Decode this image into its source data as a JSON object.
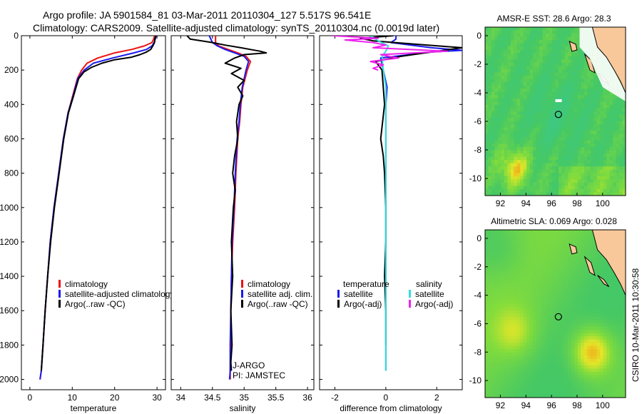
{
  "title_line1": "Argo profile: JA 5901584_81 03-Mar-2011 20110304_127 5.517S 96.541E",
  "title_line2": "Climatology: CARS2009. Satellite-adjusted climatology: synTS_20110304.nc (0.0019d later)",
  "side_label": "CSIRO 10-Mar-2011 10:30:58",
  "colors": {
    "red": "#ee1111",
    "blue": "#1a1aee",
    "black": "#000000",
    "cyan": "#33dddd",
    "magenta": "#ee22ee",
    "land": "#f8c89a"
  },
  "chart_data": [
    {
      "type": "line",
      "id": "temperature",
      "xlabel": "temperature",
      "xlim": [
        -2,
        32
      ],
      "ylim": [
        2060,
        0
      ],
      "xticks": [
        "0",
        "10",
        "20",
        "30"
      ],
      "xtick_values": [
        0,
        10,
        20,
        30
      ],
      "yticks": [
        "0",
        "200",
        "400",
        "600",
        "800",
        "1000",
        "1200",
        "1400",
        "1600",
        "1800",
        "2000"
      ],
      "ytick_values": [
        0,
        200,
        400,
        600,
        800,
        1000,
        1200,
        1400,
        1600,
        1800,
        2000
      ],
      "series": [
        {
          "name": "climatology",
          "color": "red",
          "x": [
            29.4,
            29.2,
            28.8,
            27,
            24,
            20,
            16,
            13.5,
            12.2,
            11.2,
            10.1,
            9,
            7.9,
            6.8,
            5.7,
            4.8,
            4.2,
            3.6,
            3.1,
            2.7,
            2.4
          ],
          "y": [
            0,
            20,
            40,
            60,
            80,
            100,
            130,
            160,
            200,
            250,
            350,
            450,
            600,
            800,
            1000,
            1200,
            1400,
            1600,
            1800,
            1950,
            2000
          ]
        },
        {
          "name": "satellite-adjusted climatology",
          "color": "blue",
          "x": [
            29.8,
            29.6,
            29.3,
            28.8,
            27.5,
            24.5,
            19.5,
            15,
            12.8,
            11.3,
            10.2,
            9,
            7.9,
            6.8,
            5.7,
            4.8,
            4.2,
            3.6,
            3.1,
            2.7,
            2.4
          ],
          "y": [
            0,
            20,
            40,
            60,
            80,
            100,
            130,
            160,
            200,
            250,
            350,
            450,
            600,
            800,
            1000,
            1200,
            1400,
            1600,
            1800,
            1950,
            2000
          ]
        },
        {
          "name": "Argo(..raw -QC)",
          "color": "black",
          "x": [
            29.7,
            29.5,
            29.4,
            29,
            28.5,
            27.5,
            26,
            24,
            20,
            17,
            14.5,
            12.8,
            11.5,
            10.3,
            9.1,
            8,
            6.9,
            5.8,
            4.9,
            4.2,
            3.6,
            3.1,
            2.7
          ],
          "y": [
            0,
            20,
            40,
            60,
            80,
            95,
            110,
            125,
            140,
            160,
            185,
            210,
            250,
            350,
            450,
            600,
            800,
            1000,
            1200,
            1400,
            1600,
            1800,
            1950
          ]
        }
      ],
      "legend": [
        "climatology",
        "satellite-adjusted climatology",
        "Argo(..raw -QC)"
      ],
      "legend_colors": [
        "red",
        "blue",
        "black"
      ]
    },
    {
      "type": "line",
      "id": "salinity",
      "xlabel": "salinity",
      "xlim": [
        33.85,
        36.1
      ],
      "ylim": [
        2060,
        0
      ],
      "xticks": [
        "34",
        "34.5",
        "35",
        "35.5",
        "36"
      ],
      "xtick_values": [
        34,
        34.5,
        35,
        35.5,
        36
      ],
      "series": [
        {
          "name": "climatology",
          "color": "red",
          "x": [
            34.55,
            34.55,
            34.6,
            34.75,
            34.9,
            35.03,
            35.1,
            35.05,
            34.98,
            34.95,
            34.93,
            34.9,
            34.87,
            34.85,
            34.82,
            34.8,
            34.79,
            34.79,
            34.78,
            34.78
          ],
          "y": [
            0,
            40,
            60,
            80,
            100,
            120,
            150,
            200,
            300,
            400,
            500,
            600,
            800,
            1000,
            1200,
            1400,
            1600,
            1800,
            1950,
            2000
          ]
        },
        {
          "name": "satellite adj. clim.",
          "color": "blue",
          "x": [
            34.45,
            34.5,
            34.58,
            34.7,
            34.85,
            35.0,
            35.07,
            35.03,
            34.97,
            34.94,
            34.92,
            34.89,
            34.86,
            34.84,
            34.81,
            34.8,
            34.79,
            34.78,
            34.78,
            34.77
          ],
          "y": [
            0,
            40,
            60,
            80,
            100,
            120,
            150,
            200,
            300,
            400,
            500,
            600,
            800,
            1000,
            1200,
            1400,
            1600,
            1800,
            1950,
            2000
          ]
        },
        {
          "name": "Argo(..raw -QC)",
          "color": "black",
          "x": [
            34.1,
            34.15,
            34.5,
            34.7,
            34.95,
            35.1,
            35.25,
            35.35,
            35.0,
            34.85,
            34.7,
            34.95,
            34.8,
            35.0,
            34.9,
            34.98,
            34.92,
            34.88,
            34.9,
            34.85,
            34.82,
            34.86,
            34.83,
            34.8,
            34.82,
            34.79,
            34.81,
            34.79,
            34.8
          ],
          "y": [
            0,
            20,
            40,
            55,
            70,
            80,
            90,
            100,
            110,
            130,
            160,
            190,
            220,
            260,
            300,
            350,
            400,
            500,
            600,
            700,
            800,
            900,
            1000,
            1200,
            1400,
            1600,
            1800,
            1900,
            1950
          ]
        }
      ],
      "legend": [
        "climatology",
        "satellite adj. clim.",
        "Argo(..raw -QC)"
      ],
      "legend_colors": [
        "red",
        "blue",
        "black"
      ],
      "annotations": [
        "J-ARGO",
        "PI: JAMSTEC"
      ]
    },
    {
      "type": "line",
      "id": "difference",
      "xlabel": "difference from climatology",
      "xlim": [
        -2.6,
        3.0
      ],
      "ylim": [
        2060,
        0
      ],
      "xticks": [
        "-2",
        "0",
        "2"
      ],
      "xtick_values": [
        -2,
        0,
        2
      ],
      "series": [
        {
          "name": "temperature satellite",
          "color": "blue",
          "x": [
            0.4,
            0.4,
            0.2,
            1.8,
            3.0,
            1.8,
            -0.2,
            -0.1,
            0.05,
            0.0,
            0.0,
            0.0,
            0.0,
            0.0,
            0.0,
            0.0,
            0.0,
            0.0
          ],
          "y": [
            0,
            20,
            40,
            70,
            85,
            95,
            130,
            200,
            300,
            400,
            600,
            800,
            1000,
            1200,
            1400,
            1600,
            1800,
            1950
          ]
        },
        {
          "name": "temperature Argo(-adj)",
          "color": "black",
          "x": [
            0.3,
            -1.0,
            -0.5,
            1.2,
            3.0,
            2.0,
            0.6,
            -0.4,
            -0.15,
            -0.1,
            -0.05,
            -0.2,
            -0.1,
            -0.05,
            0.0,
            0.0,
            -0.05,
            0.0,
            0.0
          ],
          "y": [
            0,
            15,
            30,
            50,
            70,
            90,
            120,
            150,
            200,
            300,
            400,
            600,
            700,
            800,
            1000,
            1200,
            1400,
            1600,
            1800
          ]
        },
        {
          "name": "salinity satellite",
          "color": "cyan",
          "x": [
            -0.6,
            -0.3,
            0.1,
            0.0,
            -0.15,
            -0.1,
            0.0,
            0.0,
            0.0,
            0.0,
            0.0,
            0.0,
            0.0,
            0.0,
            0.0,
            0.0
          ],
          "y": [
            0,
            30,
            60,
            90,
            120,
            200,
            300,
            400,
            600,
            800,
            1000,
            1200,
            1400,
            1600,
            1800,
            1950
          ]
        },
        {
          "name": "salinity Argo(-adj)",
          "color": "magenta",
          "x": [
            -2.1,
            -0.3,
            -1.6,
            -0.5,
            0.0,
            -0.5,
            2.4,
            -0.2,
            0.5,
            -0.6,
            -0.1,
            -0.5,
            -0.3
          ],
          "y": [
            0,
            15,
            25,
            40,
            55,
            70,
            90,
            110,
            130,
            150,
            170,
            190,
            200
          ]
        }
      ],
      "legend_temperature": [
        "temperature",
        "satellite",
        "Argo(-adj)"
      ],
      "legend_temperature_colors": [
        "black",
        "blue",
        "black"
      ],
      "legend_salinity": [
        "salinity",
        "satellite",
        "Argo(-adj)"
      ],
      "legend_salinity_colors": [
        "black",
        "cyan",
        "magenta"
      ]
    },
    {
      "type": "heatmap",
      "id": "sst-map",
      "title": "AMSR-E SST: 28.6 Argo: 28.3",
      "xlim": [
        90.8,
        101.8
      ],
      "ylim": [
        -11.2,
        0.6
      ],
      "xticks": [
        "92",
        "94",
        "96",
        "98",
        "100"
      ],
      "xtick_values": [
        92,
        94,
        96,
        98,
        100
      ],
      "yticks": [
        "0",
        "-2",
        "-4",
        "-6",
        "-8",
        "-10"
      ],
      "ytick_values": [
        0,
        -2,
        -4,
        -6,
        -8,
        -10
      ],
      "float_position": [
        96.541,
        -5.517
      ]
    },
    {
      "type": "heatmap",
      "id": "sla-map",
      "title": "Altimetric SLA: 0.069 Argo: 0.028",
      "xlim": [
        90.8,
        101.8
      ],
      "ylim": [
        -11.2,
        0.6
      ],
      "xticks": [
        "92",
        "94",
        "96",
        "98",
        "100"
      ],
      "xtick_values": [
        92,
        94,
        96,
        98,
        100
      ],
      "yticks": [
        "0",
        "-2",
        "-4",
        "-6",
        "-8",
        "-10"
      ],
      "ytick_values": [
        0,
        -2,
        -4,
        -6,
        -8,
        -10
      ],
      "float_position": [
        96.541,
        -5.517
      ]
    }
  ]
}
